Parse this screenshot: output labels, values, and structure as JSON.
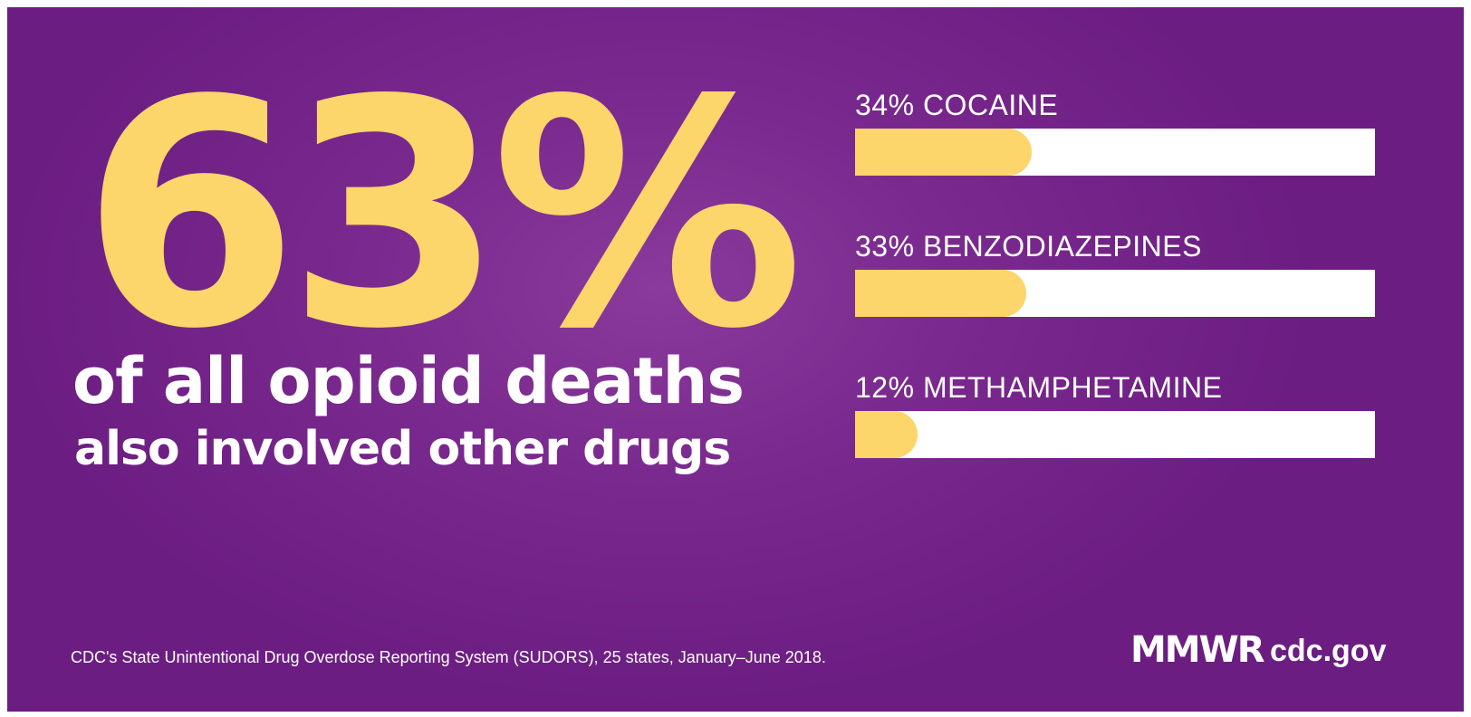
{
  "headline": {
    "big_number": "63%",
    "line1": "of all opioid deaths",
    "line2": "also involved other drugs"
  },
  "chart_data": {
    "type": "bar",
    "categories": [
      "COCAINE",
      "BENZODIAZEPINES",
      "METHAMPHETAMINE"
    ],
    "values": [
      34,
      33,
      12
    ],
    "labels": [
      "34% COCAINE",
      "33% BENZODIAZEPINES",
      "12% METHAMPHETAMINE"
    ],
    "ylim": [
      0,
      100
    ]
  },
  "footer": {
    "source": "CDC's State Unintentional Drug Overdose Reporting System (SUDORS), 25 states, January–June 2018.",
    "brand": "MMWR",
    "domain": "cdc.gov"
  },
  "colors": {
    "background": "#7a2a8e",
    "accent": "#fcd56b",
    "track": "#ffffff",
    "text": "#ffffff"
  }
}
